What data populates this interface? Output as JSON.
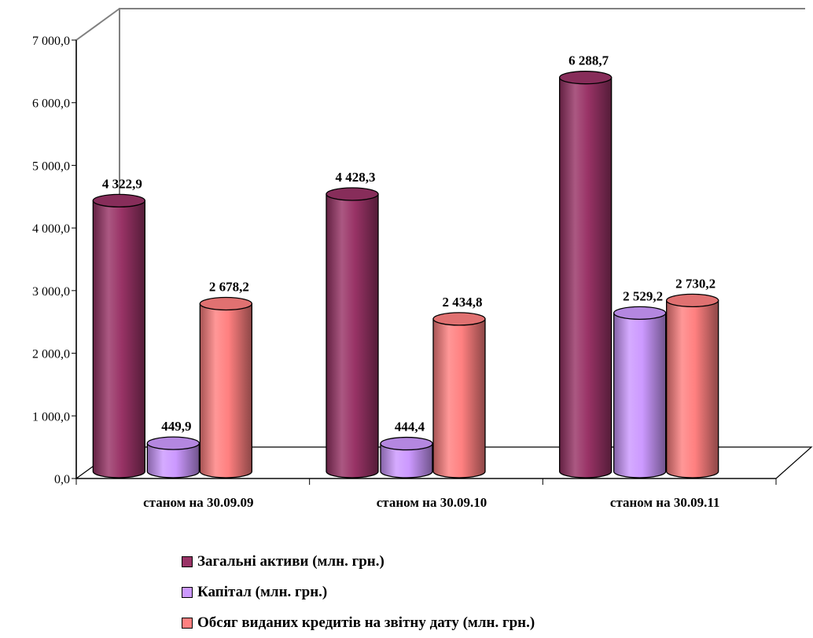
{
  "chart_data": {
    "type": "bar",
    "style": "3d-cylinder",
    "categories": [
      "станом на 30.09.09",
      "станом на 30.09.10",
      "станом на 30.09.11"
    ],
    "series": [
      {
        "name": "Загальні активи (млн. грн.)",
        "values": [
          4322.9,
          4428.3,
          6288.7
        ],
        "labels": [
          "4 322,9",
          "4 428,3",
          "6 288,7"
        ],
        "color": "#993366"
      },
      {
        "name": "Капітал (млн. грн.)",
        "values": [
          449.9,
          444.4,
          2529.2
        ],
        "labels": [
          "449,9",
          "444,4",
          "2 529,2"
        ],
        "color": "#CC99FF"
      },
      {
        "name": "Обсяг виданих кредитів на звітну дату (млн. грн.)",
        "values": [
          2678.2,
          2434.8,
          2730.2
        ],
        "labels": [
          "2 678,2",
          "2 434,8",
          "2 730,2"
        ],
        "color": "#FF8080"
      }
    ],
    "y_ticks": [
      "0,0",
      "1 000,0",
      "2 000,0",
      "3 000,0",
      "4 000,0",
      "5 000,0",
      "6 000,0",
      "7 000,0"
    ],
    "ylim": [
      0,
      7000
    ],
    "grid": false,
    "legend_position": "bottom"
  }
}
